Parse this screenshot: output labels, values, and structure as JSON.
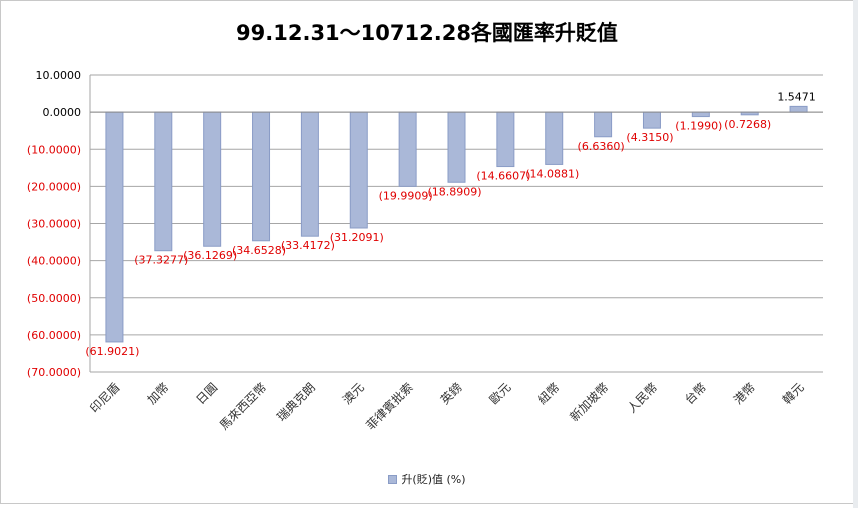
{
  "chart_data": {
    "type": "bar",
    "title": "99.12.31～10712.28各國匯率升貶值",
    "categories": [
      "印尼盾",
      "加幣",
      "日圓",
      "馬來西亞幣",
      "瑞典克朗",
      "澳元",
      "菲律賓批索",
      "英鎊",
      "歐元",
      "紐幣",
      "新加坡幣",
      "人民幣",
      "台幣",
      "港幣",
      "韓元"
    ],
    "series": [
      {
        "name": "升(貶)值 (%)",
        "values": [
          -61.9021,
          -37.3277,
          -36.1269,
          -34.6528,
          -33.4172,
          -31.2091,
          -19.9909,
          -18.8909,
          -14.6607,
          -14.0881,
          -6.636,
          -4.315,
          -1.199,
          -0.7268,
          1.5471
        ],
        "data_labels": [
          "(61.9021)",
          "(37.3277)",
          "(36.1269)",
          "(34.6528)",
          "(33.4172)",
          "(31.2091)",
          "(19.9909)",
          "(18.8909)",
          "(14.6607)",
          "(14.0881)",
          "(6.6360)",
          "(4.3150)",
          "(1.1990)",
          "(0.7268)",
          "1.5471"
        ]
      }
    ],
    "ylim": [
      -70,
      10
    ],
    "yticks": [
      10,
      0,
      -10,
      -20,
      -30,
      -40,
      -50,
      -60,
      -70
    ],
    "ytick_labels": [
      "10.0000",
      "0.0000",
      "(10.0000)",
      "(20.0000)",
      "(30.0000)",
      "(40.0000)",
      "(50.0000)",
      "(60.0000)",
      "(70.0000)"
    ],
    "xlabel": "",
    "ylabel": "",
    "grid": true,
    "legend_position": "bottom",
    "colors": {
      "bar_fill": "#aab8d8",
      "bar_stroke": "#8a9cc6",
      "negative_label": "#e00000",
      "positive_label": "#000000",
      "negative_tick": "#e00000",
      "positive_tick": "#000000",
      "grid": "#a6a6a6"
    }
  }
}
